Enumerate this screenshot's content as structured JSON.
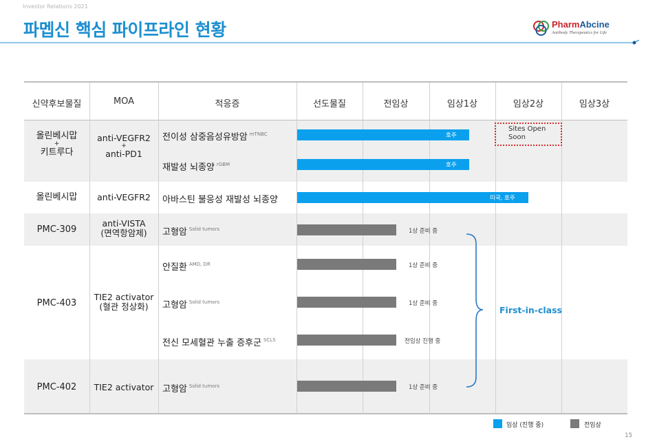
{
  "header": {
    "eyebrow": "Investor Relations 2021",
    "title": "파멥신 핵심 파이프라인 현황",
    "logo_name_ph": "Pharm",
    "logo_name_rest": "Abcine",
    "logo_tagline": "Antibody Therapeutics for Life"
  },
  "table": {
    "columns": [
      "신약후보물질",
      "MOA",
      "적응증",
      "선도물질",
      "전임상",
      "임상1상",
      "임상2상",
      "임상3상"
    ],
    "rows": [
      {
        "candidate_a": "올린베시맙",
        "plus": "+",
        "candidate_b": "키트루다",
        "moa_a": "anti-VEGFR2",
        "moa_plus": "+",
        "moa_b": "anti-PD1"
      },
      {
        "candidate": "올린베시맙",
        "moa": "anti-VEGFR2"
      },
      {
        "candidate": "PMC-309",
        "moa_a": "anti-VISTA",
        "moa_b": "(면역항암제)"
      },
      {
        "candidate": "PMC-403",
        "moa_a": "TIE2 activator",
        "moa_b": "(혈관 정상화)"
      },
      {
        "candidate": "PMC-402",
        "moa": "TIE2 activator"
      }
    ],
    "indications": [
      {
        "name": "전이성 삼중음성유방암",
        "sub": "mTNBC",
        "bar_label": "호주"
      },
      {
        "name": "재발성 뇌종양",
        "sub": "rGBM",
        "bar_label": "호주"
      },
      {
        "name": "아바스틴 불응성 재발성 뇌종양",
        "sub": "",
        "bar_label": "미국, 호주"
      },
      {
        "name": "고형암",
        "sub": "Solid tumors",
        "status": "1상 준비 중"
      },
      {
        "name": "안질환",
        "sub": "AMD, DR",
        "status": "1상 준비 중"
      },
      {
        "name": "고형암",
        "sub": "Solid tumors",
        "status": "1상 준비 중"
      },
      {
        "name": "전신 모세혈관 누출 증후군",
        "sub": "SCLS",
        "status": "전임상 진행 중"
      },
      {
        "name": "고형암",
        "sub": "Solid tumors",
        "status": "1상 준비 중"
      }
    ],
    "sites_open": "Sites Open Soon",
    "sites_open_a": "Sites Open",
    "sites_open_b": "Soon",
    "first_in_class": "First-in-class"
  },
  "legend": {
    "clinical": "임상 (진행 중)",
    "preclinical": "전임상"
  },
  "colors": {
    "clinical_bar": "#0aa0ee",
    "preclinical_bar": "#7a7a7a",
    "accent": "#1d8fd0"
  },
  "page_number": "15"
}
